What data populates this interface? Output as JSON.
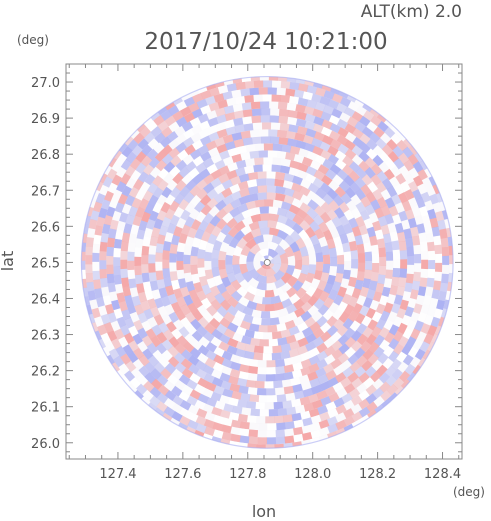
{
  "header": {
    "alt_label": "ALT(km) 2.0",
    "timestamp": "2017/10/24 10:21:00"
  },
  "chart_data": {
    "type": "heatmap",
    "xlabel": "lon",
    "ylabel": "lat",
    "x_unit": "(deg)",
    "y_unit": "(deg)",
    "xlim": [
      127.24,
      128.46
    ],
    "ylim": [
      25.955,
      27.05
    ],
    "xticks": [
      127.4,
      127.6,
      127.8,
      128.0,
      128.2,
      128.4
    ],
    "xtick_labels": [
      "127.4",
      "127.6",
      "127.8",
      "128.0",
      "128.2",
      "128.4"
    ],
    "yticks": [
      26.0,
      26.1,
      26.2,
      26.3,
      26.4,
      26.5,
      26.6,
      26.7,
      26.8,
      26.9,
      27.0
    ],
    "ytick_labels": [
      "26.0",
      "26.1",
      "26.2",
      "26.3",
      "26.4",
      "26.5",
      "26.6",
      "26.7",
      "26.8",
      "26.9",
      "27.0"
    ],
    "radar_center": {
      "lon": 127.86,
      "lat": 26.5
    },
    "coverage_radius_lon": 0.545,
    "coverage_radius_lat": 0.54,
    "colors": {
      "positive": "#f4a3a3",
      "negative": "#a9aef2",
      "frame": "#888888",
      "text": "#555555"
    },
    "grid": false
  }
}
